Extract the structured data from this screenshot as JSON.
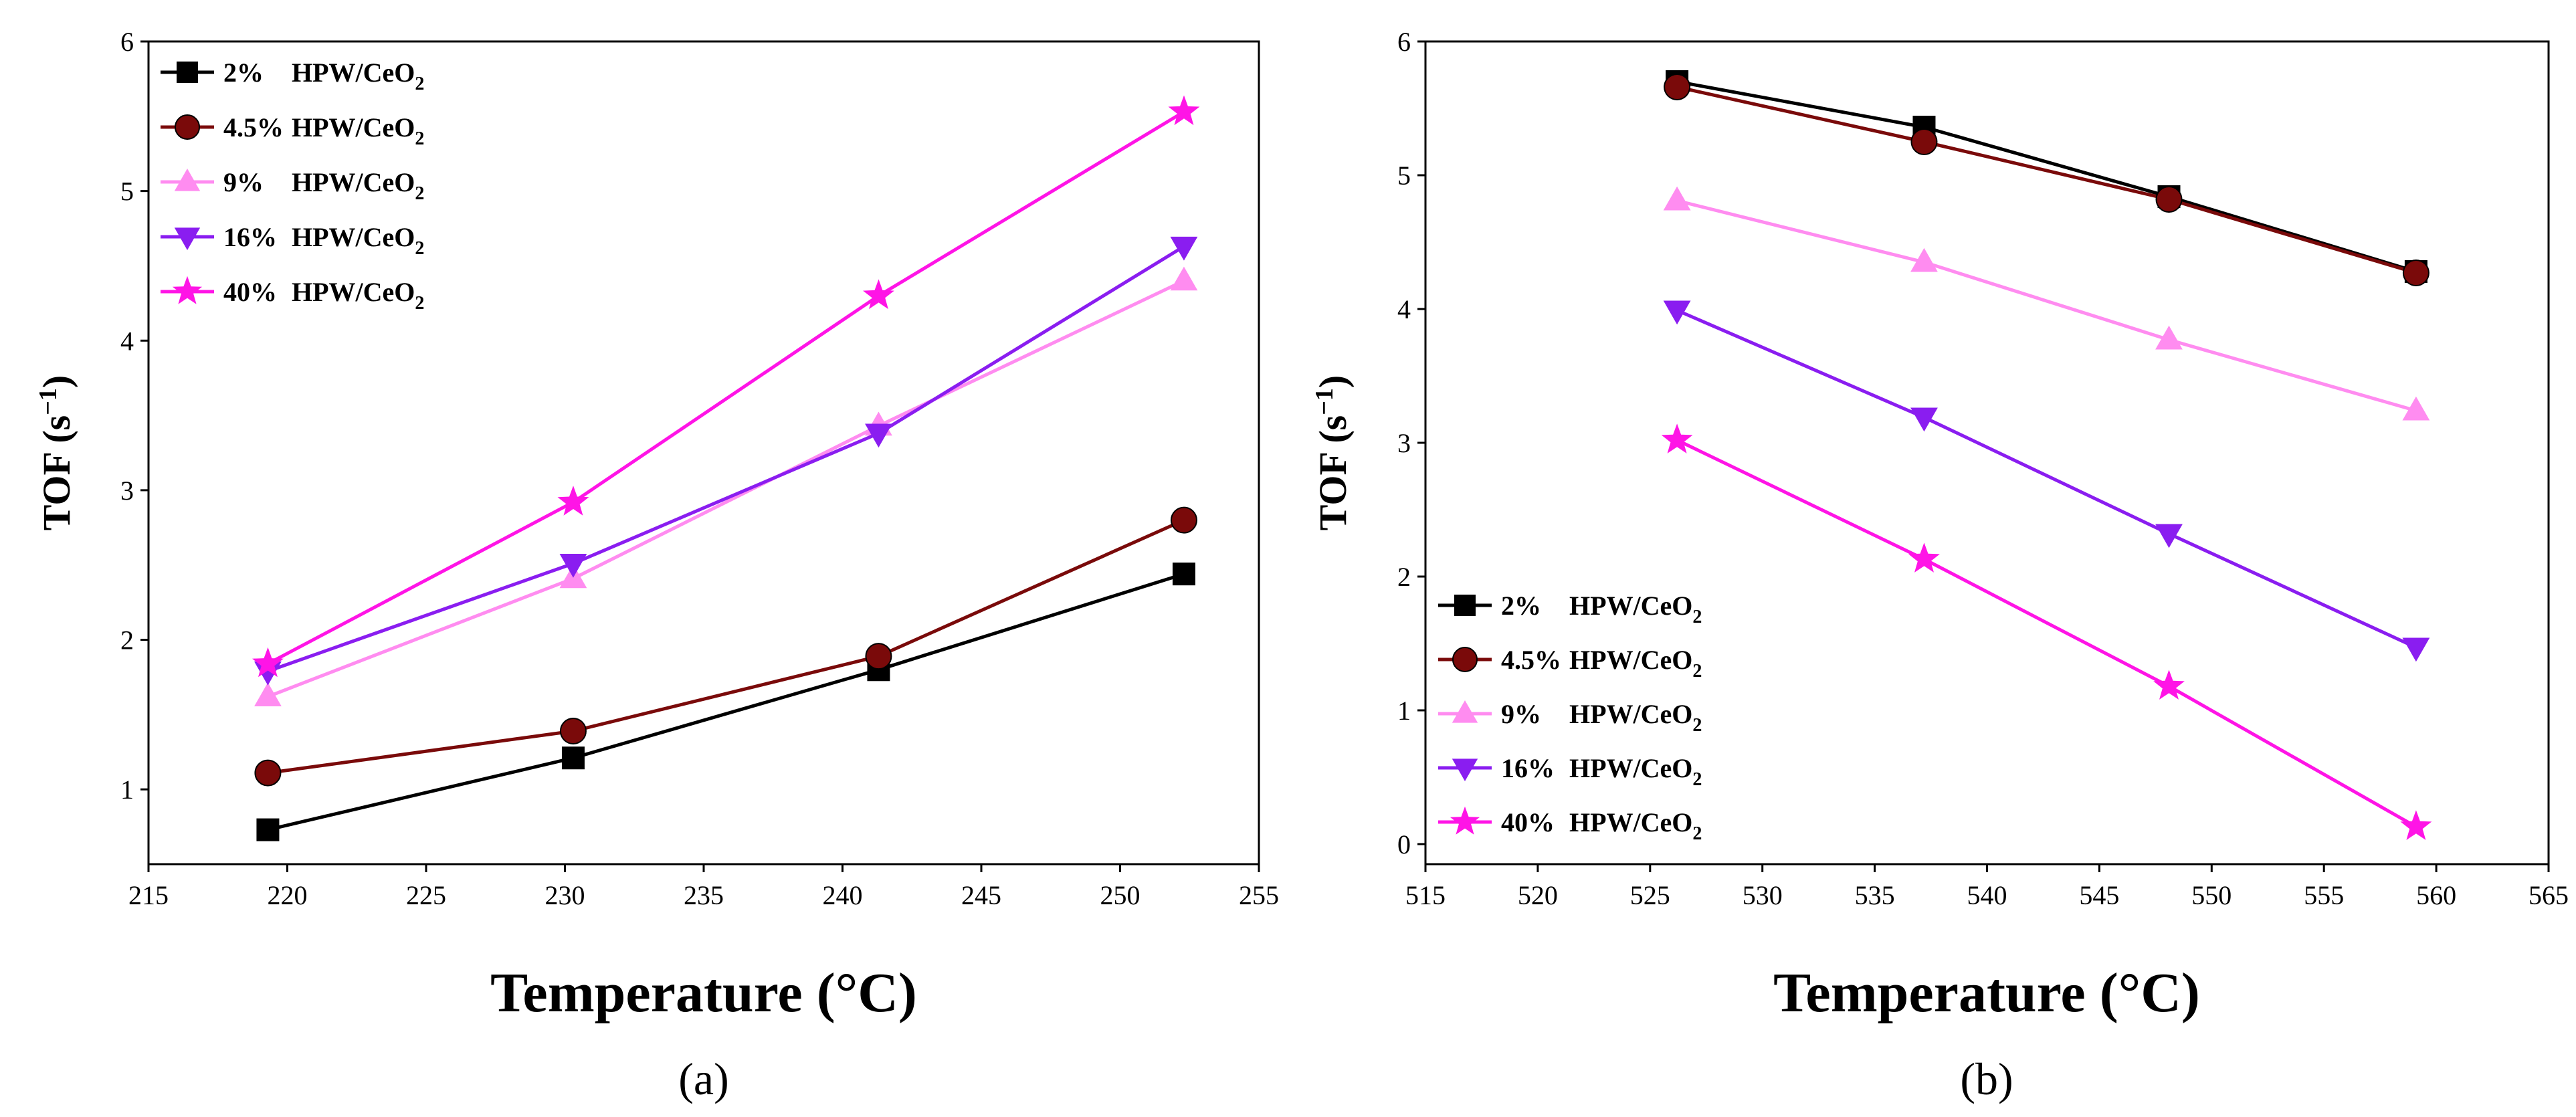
{
  "chart_data": [
    {
      "type": "line",
      "panel_label": "(a)",
      "xlabel": "Temperature (°C)",
      "ylabel": "TOF (s",
      "ylabel_sup": "−1",
      "ylabel_close": ")",
      "xlim": [
        215,
        255
      ],
      "ylim": [
        0.5,
        6
      ],
      "xticks": [
        "215",
        "220",
        "225",
        "230",
        "235",
        "240",
        "245",
        "250",
        "255"
      ],
      "yticks": [
        "1",
        "2",
        "3",
        "4",
        "5",
        "6"
      ],
      "legend_position": "top-left",
      "x": [
        219.3,
        230.3,
        241.3,
        252.3
      ],
      "series": [
        {
          "name": "2%",
          "label_suffix": "HPW/CeO",
          "sub": "2",
          "color": "#000000",
          "marker": "square",
          "values": [
            0.73,
            1.21,
            1.8,
            2.44
          ]
        },
        {
          "name": "4.5%",
          "label_suffix": "HPW/CeO",
          "sub": "2",
          "color": "#7a0a0a",
          "marker": "circle",
          "values": [
            1.11,
            1.39,
            1.89,
            2.8
          ]
        },
        {
          "name": "9%",
          "label_suffix": "HPW/CeO",
          "sub": "2",
          "color": "#ff8cf0",
          "marker": "triangle-up",
          "values": [
            1.62,
            2.41,
            3.43,
            4.4
          ]
        },
        {
          "name": "16%",
          "label_suffix": "HPW/CeO",
          "sub": "2",
          "color": "#8a1df0",
          "marker": "triangle-down",
          "values": [
            1.79,
            2.51,
            3.38,
            4.63
          ]
        },
        {
          "name": "40%",
          "label_suffix": "HPW/CeO",
          "sub": "2",
          "color": "#ff14e6",
          "marker": "star",
          "values": [
            1.84,
            2.92,
            4.3,
            5.53
          ]
        }
      ]
    },
    {
      "type": "line",
      "panel_label": "(b)",
      "xlabel": "Temperature (°C)",
      "ylabel": "TOF (s",
      "ylabel_sup": "−1",
      "ylabel_close": ")",
      "xlim": [
        515,
        565
      ],
      "ylim": [
        -0.15,
        6
      ],
      "xticks": [
        "515",
        "520",
        "525",
        "530",
        "535",
        "540",
        "545",
        "550",
        "555",
        "560",
        "565"
      ],
      "yticks": [
        "0",
        "1",
        "2",
        "3",
        "4",
        "5",
        "6"
      ],
      "legend_position": "bottom-left",
      "x": [
        526.2,
        537.2,
        548.1,
        559.1
      ],
      "series": [
        {
          "name": "2%",
          "label_suffix": "HPW/CeO",
          "sub": "2",
          "color": "#000000",
          "marker": "square",
          "values": [
            5.7,
            5.36,
            4.84,
            4.28
          ]
        },
        {
          "name": "4.5%",
          "label_suffix": "HPW/CeO",
          "sub": "2",
          "color": "#7a0a0a",
          "marker": "circle",
          "values": [
            5.66,
            5.25,
            4.82,
            4.27
          ]
        },
        {
          "name": "9%",
          "label_suffix": "HPW/CeO",
          "sub": "2",
          "color": "#ff8cf0",
          "marker": "triangle-up",
          "values": [
            4.81,
            4.35,
            3.77,
            3.24
          ]
        },
        {
          "name": "16%",
          "label_suffix": "HPW/CeO",
          "sub": "2",
          "color": "#8a1df0",
          "marker": "triangle-down",
          "values": [
            3.99,
            3.19,
            2.32,
            1.47
          ]
        },
        {
          "name": "40%",
          "label_suffix": "HPW/CeO",
          "sub": "2",
          "color": "#ff14e6",
          "marker": "star",
          "values": [
            3.02,
            2.13,
            1.18,
            0.13
          ]
        }
      ]
    }
  ]
}
